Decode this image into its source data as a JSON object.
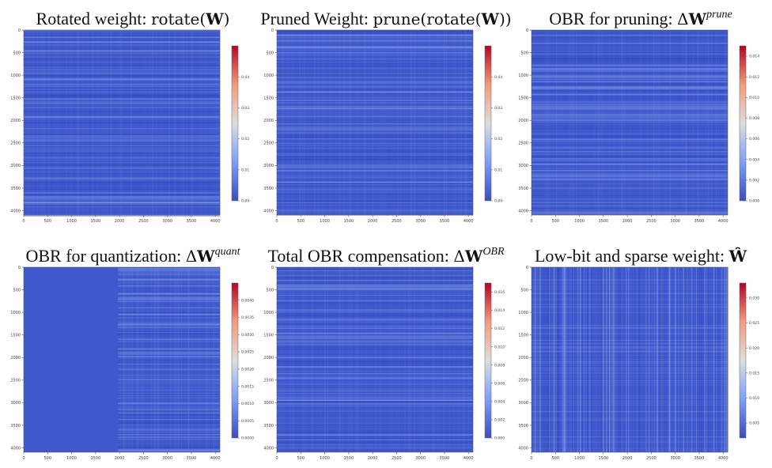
{
  "chart_data": [
    {
      "type": "heatmap",
      "title_prefix": "Rotated weight: ",
      "title_math": "rotate(",
      "title_bold": "W",
      "title_math_end": ")",
      "title_sup": "",
      "x_ticks": [
        0,
        500,
        1000,
        1500,
        2000,
        2500,
        3000,
        3500,
        4000
      ],
      "y_ticks": [
        0,
        500,
        1000,
        1500,
        2000,
        2500,
        3000,
        3500,
        4000
      ],
      "xlim": [
        0,
        4096
      ],
      "ylim": [
        0,
        4096
      ],
      "colorbar_ticks": [
        "0.00",
        "0.01",
        "0.02",
        "0.03",
        "0.04"
      ],
      "colorbar_range": [
        0,
        0.05
      ],
      "stripes": "rows",
      "colormap": "coolwarm"
    },
    {
      "type": "heatmap",
      "title_prefix": "Pruned Weight: ",
      "title_math": "prune(rotate(",
      "title_bold": "W",
      "title_math_end": "))",
      "title_sup": "",
      "x_ticks": [
        0,
        500,
        1000,
        1500,
        2000,
        2500,
        3000,
        3500,
        4000
      ],
      "y_ticks": [
        0,
        500,
        1000,
        1500,
        2000,
        2500,
        3000,
        3500,
        4000
      ],
      "xlim": [
        0,
        4096
      ],
      "ylim": [
        0,
        4096
      ],
      "colorbar_ticks": [
        "0.00",
        "0.01",
        "0.02",
        "0.03",
        "0.04"
      ],
      "colorbar_range": [
        0,
        0.05
      ],
      "stripes": "rows",
      "colormap": "coolwarm"
    },
    {
      "type": "heatmap",
      "title_prefix": "OBR for pruning: ",
      "title_math": "Δ",
      "title_bold": "W",
      "title_math_end": "",
      "title_sup": "prune",
      "x_ticks": [
        0,
        500,
        1000,
        1500,
        2000,
        2500,
        3000,
        3500,
        4000
      ],
      "y_ticks": [
        0,
        500,
        1000,
        1500,
        2000,
        2500,
        3000,
        3500,
        4000
      ],
      "xlim": [
        0,
        4096
      ],
      "ylim": [
        0,
        4096
      ],
      "colorbar_ticks": [
        "0.000",
        "0.002",
        "0.004",
        "0.006",
        "0.008",
        "0.010",
        "0.012",
        "0.014"
      ],
      "colorbar_range": [
        0,
        0.015
      ],
      "stripes": "rows",
      "colormap": "coolwarm"
    },
    {
      "type": "heatmap",
      "title_prefix": "OBR for quantization: ",
      "title_math": "Δ",
      "title_bold": "W",
      "title_math_end": "",
      "title_sup": "quant",
      "x_ticks": [
        0,
        500,
        1000,
        1500,
        2000,
        2500,
        3000,
        3500,
        4000
      ],
      "y_ticks": [
        0,
        500,
        1000,
        1500,
        2000,
        2500,
        3000,
        3500,
        4000
      ],
      "xlim": [
        0,
        4096
      ],
      "ylim": [
        0,
        4096
      ],
      "colorbar_ticks": [
        "0.0000",
        "0.0005",
        "0.0010",
        "0.0015",
        "0.0020",
        "0.0025",
        "0.0030",
        "0.0035",
        "0.0040"
      ],
      "colorbar_range": [
        0,
        0.0045
      ],
      "stripes": "right-half",
      "colormap": "coolwarm"
    },
    {
      "type": "heatmap",
      "title_prefix": "Total OBR compensation: ",
      "title_math": "Δ",
      "title_bold": "W",
      "title_math_end": "",
      "title_sup": "OBR",
      "x_ticks": [
        0,
        500,
        1000,
        1500,
        2000,
        2500,
        3000,
        3500,
        4000
      ],
      "y_ticks": [
        0,
        500,
        1000,
        1500,
        2000,
        2500,
        3000,
        3500,
        4000
      ],
      "xlim": [
        0,
        4096
      ],
      "ylim": [
        0,
        4096
      ],
      "colorbar_ticks": [
        "0.000",
        "0.002",
        "0.004",
        "0.006",
        "0.008",
        "0.010",
        "0.012",
        "0.014",
        "0.016"
      ],
      "colorbar_range": [
        0,
        0.017
      ],
      "stripes": "rows",
      "colormap": "coolwarm"
    },
    {
      "type": "heatmap",
      "title_prefix": "Low-bit and sparse weight: ",
      "title_math": "",
      "title_bold": "Ŵ",
      "title_math_end": "",
      "title_sup": "",
      "x_ticks": [
        0,
        500,
        1000,
        1500,
        2000,
        2500,
        3000,
        3500,
        4000
      ],
      "y_ticks": [
        0,
        500,
        1000,
        1500,
        2000,
        2500,
        3000,
        3500,
        4000
      ],
      "xlim": [
        0,
        4096
      ],
      "ylim": [
        0,
        4096
      ],
      "colorbar_ticks": [
        "0.005",
        "0.010",
        "0.015",
        "0.020",
        "0.025",
        "0.030"
      ],
      "colorbar_range": [
        0.002,
        0.033
      ],
      "stripes": "columns",
      "colormap": "coolwarm"
    }
  ]
}
